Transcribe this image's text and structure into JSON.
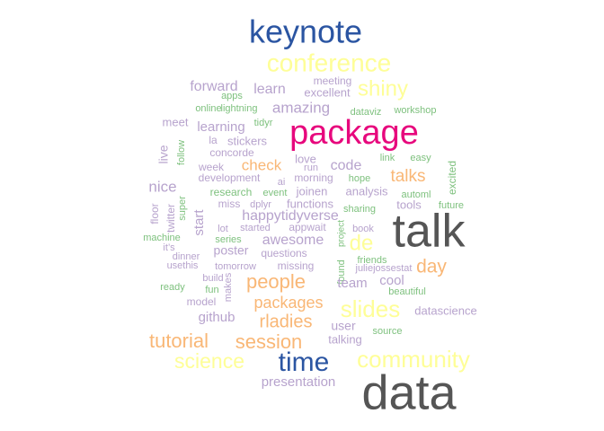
{
  "palette": {
    "purple": "#b7a3cd",
    "green": "#7ec17e",
    "orange": "#f9b776",
    "yellow": "#fefe97",
    "blue": "#2b55a2",
    "pink": "#e7087d",
    "gray": "#555555"
  },
  "words": [
    {
      "text": "keynote",
      "color": "blue"
    },
    {
      "text": "conference",
      "color": "yellow"
    },
    {
      "text": "meeting",
      "color": "purple"
    },
    {
      "text": "forward",
      "color": "purple"
    },
    {
      "text": "learn",
      "color": "purple"
    },
    {
      "text": "excellent",
      "color": "purple"
    },
    {
      "text": "shiny",
      "color": "yellow"
    },
    {
      "text": "apps",
      "color": "green"
    },
    {
      "text": "online",
      "color": "green"
    },
    {
      "text": "lightning",
      "color": "green"
    },
    {
      "text": "amazing",
      "color": "purple"
    },
    {
      "text": "dataviz",
      "color": "green"
    },
    {
      "text": "workshop",
      "color": "green"
    },
    {
      "text": "meet",
      "color": "purple"
    },
    {
      "text": "tidyr",
      "color": "green"
    },
    {
      "text": "learning",
      "color": "purple"
    },
    {
      "text": "package",
      "color": "pink"
    },
    {
      "text": "la",
      "color": "purple"
    },
    {
      "text": "stickers",
      "color": "purple"
    },
    {
      "text": "concorde",
      "color": "purple"
    },
    {
      "text": "live",
      "color": "purple"
    },
    {
      "text": "follow",
      "color": "green"
    },
    {
      "text": "love",
      "color": "purple"
    },
    {
      "text": "link",
      "color": "green"
    },
    {
      "text": "easy",
      "color": "green"
    },
    {
      "text": "week",
      "color": "purple"
    },
    {
      "text": "check",
      "color": "orange"
    },
    {
      "text": "run",
      "color": "purple"
    },
    {
      "text": "code",
      "color": "purple"
    },
    {
      "text": "excited",
      "color": "green"
    },
    {
      "text": "development",
      "color": "purple"
    },
    {
      "text": "ai",
      "color": "purple"
    },
    {
      "text": "morning",
      "color": "purple"
    },
    {
      "text": "hope",
      "color": "green"
    },
    {
      "text": "talks",
      "color": "orange"
    },
    {
      "text": "nice",
      "color": "purple"
    },
    {
      "text": "joinen",
      "color": "purple"
    },
    {
      "text": "analysis",
      "color": "purple"
    },
    {
      "text": "automl",
      "color": "green"
    },
    {
      "text": "research",
      "color": "green"
    },
    {
      "text": "event",
      "color": "green"
    },
    {
      "text": "miss",
      "color": "purple"
    },
    {
      "text": "dplyr",
      "color": "purple"
    },
    {
      "text": "functions",
      "color": "purple"
    },
    {
      "text": "tools",
      "color": "purple"
    },
    {
      "text": "future",
      "color": "green"
    },
    {
      "text": "floor",
      "color": "purple"
    },
    {
      "text": "twitter",
      "color": "purple"
    },
    {
      "text": "super",
      "color": "green"
    },
    {
      "text": "start",
      "color": "purple"
    },
    {
      "text": "happytidyverse",
      "color": "purple"
    },
    {
      "text": "sharing",
      "color": "green"
    },
    {
      "text": "talk",
      "color": "gray"
    },
    {
      "text": "machine",
      "color": "green"
    },
    {
      "text": "lot",
      "color": "purple"
    },
    {
      "text": "started",
      "color": "purple"
    },
    {
      "text": "appwait",
      "color": "purple"
    },
    {
      "text": "project",
      "color": "green"
    },
    {
      "text": "book",
      "color": "purple"
    },
    {
      "text": "de",
      "color": "yellow"
    },
    {
      "text": "series",
      "color": "green"
    },
    {
      "text": "awesome",
      "color": "purple"
    },
    {
      "text": "it’s",
      "color": "purple"
    },
    {
      "text": "dinner",
      "color": "purple"
    },
    {
      "text": "poster",
      "color": "purple"
    },
    {
      "text": "questions",
      "color": "purple"
    },
    {
      "text": "friends",
      "color": "green"
    },
    {
      "text": "usethis",
      "color": "purple"
    },
    {
      "text": "tomorrow",
      "color": "purple"
    },
    {
      "text": "missing",
      "color": "purple"
    },
    {
      "text": "found",
      "color": "green"
    },
    {
      "text": "juliejossestat",
      "color": "purple"
    },
    {
      "text": "day",
      "color": "orange"
    },
    {
      "text": "build",
      "color": "purple"
    },
    {
      "text": "makes",
      "color": "purple"
    },
    {
      "text": "people",
      "color": "orange"
    },
    {
      "text": "team",
      "color": "purple"
    },
    {
      "text": "cool",
      "color": "purple"
    },
    {
      "text": "ready",
      "color": "green"
    },
    {
      "text": "fun",
      "color": "green"
    },
    {
      "text": "beautiful",
      "color": "green"
    },
    {
      "text": "model",
      "color": "purple"
    },
    {
      "text": "packages",
      "color": "orange"
    },
    {
      "text": "slides",
      "color": "yellow"
    },
    {
      "text": "datascience",
      "color": "purple"
    },
    {
      "text": "github",
      "color": "purple"
    },
    {
      "text": "rladies",
      "color": "orange"
    },
    {
      "text": "user",
      "color": "purple"
    },
    {
      "text": "source",
      "color": "green"
    },
    {
      "text": "tutorial",
      "color": "orange"
    },
    {
      "text": "session",
      "color": "orange"
    },
    {
      "text": "talking",
      "color": "purple"
    },
    {
      "text": "science",
      "color": "yellow"
    },
    {
      "text": "time",
      "color": "blue"
    },
    {
      "text": "community",
      "color": "yellow"
    },
    {
      "text": "presentation",
      "color": "purple"
    },
    {
      "text": "data",
      "color": "gray"
    }
  ]
}
